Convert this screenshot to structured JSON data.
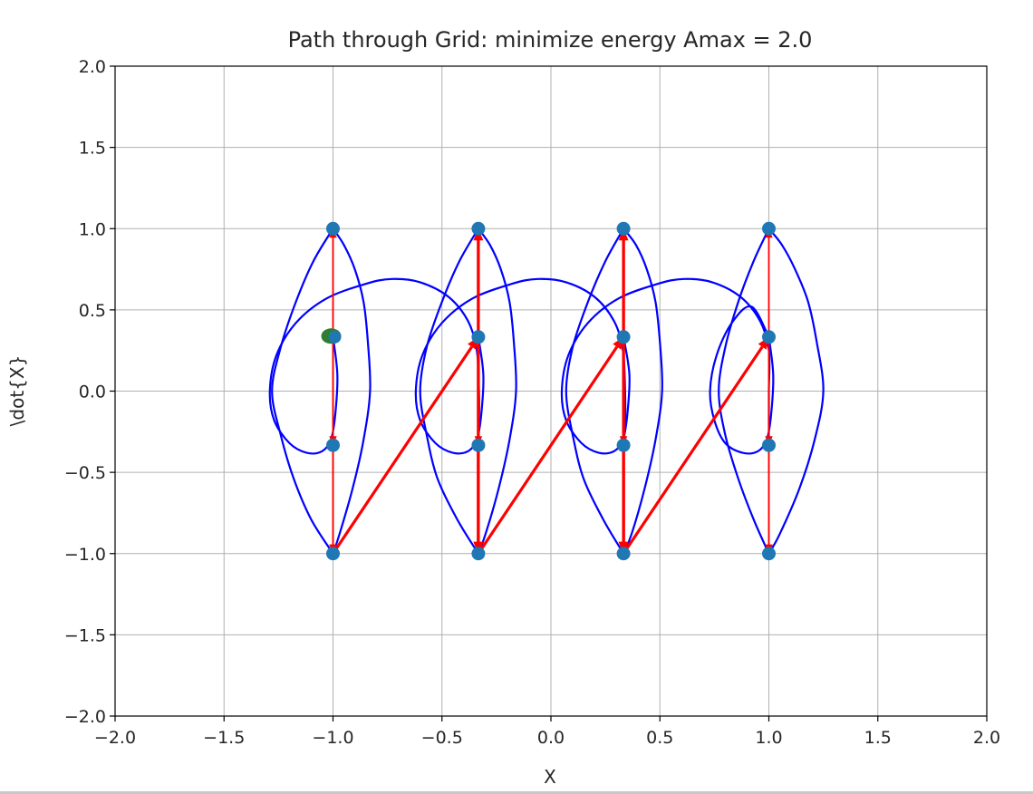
{
  "chart_data": {
    "type": "scatter",
    "title": "Path through Grid: minimize energy  Amax = 2.0",
    "xlabel": "X",
    "ylabel": "\\dot{X}",
    "xlim": [
      -2.0,
      2.0
    ],
    "ylim": [
      -2.0,
      2.0
    ],
    "xticks": [
      -2.0,
      -1.5,
      -1.0,
      -0.5,
      0.0,
      0.5,
      1.0,
      1.5,
      2.0
    ],
    "yticks": [
      -2.0,
      -1.5,
      -1.0,
      -0.5,
      0.0,
      0.5,
      1.0,
      1.5,
      2.0
    ],
    "xtick_labels": [
      "−2.0",
      "−1.5",
      "−1.0",
      "−0.5",
      "0.0",
      "0.5",
      "1.0",
      "1.5",
      "2.0"
    ],
    "ytick_labels": [
      "−2.0",
      "−1.5",
      "−1.0",
      "−0.5",
      "0.0",
      "0.5",
      "1.0",
      "1.5",
      "2.0"
    ],
    "grid": true,
    "colors": {
      "grid_nodes": "#1f77b4",
      "start_node": "#2e7d32",
      "curves": "#0000ff",
      "arrows": "#ff0000",
      "grid": "#b0b0b0",
      "axes": "#000000"
    },
    "grid_nodes": [
      {
        "x": -1.0,
        "y": 1.0
      },
      {
        "x": -1.0,
        "y": 0.333
      },
      {
        "x": -1.0,
        "y": -0.333
      },
      {
        "x": -1.0,
        "y": -1.0
      },
      {
        "x": -0.333,
        "y": 1.0
      },
      {
        "x": -0.333,
        "y": 0.333
      },
      {
        "x": -0.333,
        "y": -0.333
      },
      {
        "x": -0.333,
        "y": -1.0
      },
      {
        "x": 0.333,
        "y": 1.0
      },
      {
        "x": 0.333,
        "y": 0.333
      },
      {
        "x": 0.333,
        "y": -0.333
      },
      {
        "x": 0.333,
        "y": -1.0
      },
      {
        "x": 1.0,
        "y": 1.0
      },
      {
        "x": 1.0,
        "y": 0.333
      },
      {
        "x": 1.0,
        "y": -0.333
      },
      {
        "x": 1.0,
        "y": -1.0
      }
    ],
    "start_node": {
      "x": -1.0,
      "y": 0.333
    },
    "arrows": [
      {
        "from": [
          -1.0,
          0.333
        ],
        "to": [
          -1.0,
          -0.333
        ],
        "width": "thin"
      },
      {
        "from": [
          -1.0,
          -0.333
        ],
        "to": [
          -1.0,
          -1.0
        ],
        "width": "thin"
      },
      {
        "from": [
          -1.0,
          -1.0
        ],
        "to": [
          -1.0,
          1.0
        ],
        "width": "thin"
      },
      {
        "from": [
          -1.0,
          1.0
        ],
        "to": [
          -1.0,
          -1.0
        ],
        "width": "thin"
      },
      {
        "from": [
          -1.0,
          -1.0
        ],
        "to": [
          -0.333,
          0.333
        ],
        "width": "thick"
      },
      {
        "from": [
          -0.333,
          0.333
        ],
        "to": [
          -0.333,
          -0.333
        ],
        "width": "thin"
      },
      {
        "from": [
          -0.333,
          -0.333
        ],
        "to": [
          -0.333,
          -1.0
        ],
        "width": "thick"
      },
      {
        "from": [
          -0.333,
          -1.0
        ],
        "to": [
          -0.333,
          1.0
        ],
        "width": "thick"
      },
      {
        "from": [
          -0.333,
          1.0
        ],
        "to": [
          -0.333,
          -1.0
        ],
        "width": "thick"
      },
      {
        "from": [
          -0.333,
          -1.0
        ],
        "to": [
          0.333,
          0.333
        ],
        "width": "thick"
      },
      {
        "from": [
          0.333,
          0.333
        ],
        "to": [
          0.333,
          -0.333
        ],
        "width": "thin"
      },
      {
        "from": [
          0.333,
          -0.333
        ],
        "to": [
          0.333,
          -1.0
        ],
        "width": "thick"
      },
      {
        "from": [
          0.333,
          -1.0
        ],
        "to": [
          0.333,
          1.0
        ],
        "width": "thick"
      },
      {
        "from": [
          0.333,
          1.0
        ],
        "to": [
          0.333,
          -1.0
        ],
        "width": "thick"
      },
      {
        "from": [
          0.333,
          -1.0
        ],
        "to": [
          1.0,
          0.333
        ],
        "width": "thick"
      },
      {
        "from": [
          1.0,
          0.333
        ],
        "to": [
          1.0,
          -0.333
        ],
        "width": "thin"
      },
      {
        "from": [
          1.0,
          -0.333
        ],
        "to": [
          1.0,
          -1.0
        ],
        "width": "thin"
      },
      {
        "from": [
          1.0,
          -1.0
        ],
        "to": [
          1.0,
          1.0
        ],
        "width": "thin"
      },
      {
        "from": [
          1.0,
          1.0
        ],
        "to": [
          1.0,
          -1.0
        ],
        "width": "thin"
      }
    ],
    "curves": [
      {
        "points": [
          [
            -1.0,
            -1.0
          ],
          [
            -1.1,
            -0.79
          ],
          [
            -1.18,
            -0.54
          ],
          [
            -1.24,
            -0.27
          ],
          [
            -1.28,
            0.0
          ],
          [
            -1.24,
            0.27
          ],
          [
            -1.17,
            0.55
          ],
          [
            -1.09,
            0.8
          ],
          [
            -1.0,
            1.0
          ]
        ]
      },
      {
        "points": [
          [
            -1.0,
            1.0
          ],
          [
            -0.95,
            0.9
          ],
          [
            -0.9,
            0.75
          ],
          [
            -0.86,
            0.55
          ],
          [
            -0.84,
            0.3
          ],
          [
            -0.83,
            0.0
          ],
          [
            -0.86,
            -0.3
          ],
          [
            -0.91,
            -0.6
          ],
          [
            -0.97,
            -0.88
          ],
          [
            -1.0,
            -1.0
          ]
        ]
      },
      {
        "points": [
          [
            -1.0,
            0.333
          ],
          [
            -0.98,
            0.1
          ],
          [
            -0.99,
            -0.15
          ],
          [
            -1.01,
            -0.3
          ],
          [
            -1.05,
            -0.37
          ],
          [
            -1.12,
            -0.38
          ],
          [
            -1.2,
            -0.32
          ],
          [
            -1.27,
            -0.18
          ],
          [
            -1.29,
            0.0
          ],
          [
            -1.26,
            0.22
          ],
          [
            -1.17,
            0.42
          ],
          [
            -1.03,
            0.57
          ],
          [
            -0.85,
            0.66
          ],
          [
            -0.73,
            0.69
          ],
          [
            -0.6,
            0.67
          ],
          [
            -0.47,
            0.58
          ],
          [
            -0.38,
            0.43
          ],
          [
            -0.34,
            0.25
          ],
          [
            -0.33,
            0.0
          ],
          [
            -0.33,
            -0.2
          ],
          [
            -0.333,
            -0.333
          ]
        ]
      },
      {
        "points": [
          [
            -0.333,
            -1.0
          ],
          [
            -0.43,
            -0.79
          ],
          [
            -0.52,
            -0.54
          ],
          [
            -0.57,
            -0.27
          ],
          [
            -0.6,
            0.0
          ],
          [
            -0.57,
            0.27
          ],
          [
            -0.5,
            0.55
          ],
          [
            -0.42,
            0.8
          ],
          [
            -0.333,
            1.0
          ]
        ]
      },
      {
        "points": [
          [
            -0.333,
            1.0
          ],
          [
            -0.28,
            0.9
          ],
          [
            -0.23,
            0.75
          ],
          [
            -0.19,
            0.55
          ],
          [
            -0.17,
            0.3
          ],
          [
            -0.16,
            0.0
          ],
          [
            -0.19,
            -0.3
          ],
          [
            -0.24,
            -0.6
          ],
          [
            -0.3,
            -0.88
          ],
          [
            -0.333,
            -1.0
          ]
        ]
      },
      {
        "points": [
          [
            -0.333,
            0.333
          ],
          [
            -0.31,
            0.1
          ],
          [
            -0.32,
            -0.15
          ],
          [
            -0.34,
            -0.3
          ],
          [
            -0.38,
            -0.37
          ],
          [
            -0.45,
            -0.38
          ],
          [
            -0.53,
            -0.32
          ],
          [
            -0.6,
            -0.18
          ],
          [
            -0.62,
            0.0
          ],
          [
            -0.59,
            0.22
          ],
          [
            -0.5,
            0.42
          ],
          [
            -0.36,
            0.57
          ],
          [
            -0.18,
            0.66
          ],
          [
            -0.06,
            0.69
          ],
          [
            0.07,
            0.67
          ],
          [
            0.2,
            0.58
          ],
          [
            0.29,
            0.43
          ],
          [
            0.33,
            0.25
          ],
          [
            0.34,
            0.0
          ],
          [
            0.34,
            -0.2
          ],
          [
            0.333,
            -0.333
          ]
        ]
      },
      {
        "points": [
          [
            0.333,
            -1.0
          ],
          [
            0.24,
            -0.79
          ],
          [
            0.15,
            -0.54
          ],
          [
            0.1,
            -0.27
          ],
          [
            0.07,
            0.0
          ],
          [
            0.1,
            0.27
          ],
          [
            0.17,
            0.55
          ],
          [
            0.25,
            0.8
          ],
          [
            0.333,
            1.0
          ]
        ]
      },
      {
        "points": [
          [
            0.333,
            1.0
          ],
          [
            0.39,
            0.9
          ],
          [
            0.44,
            0.75
          ],
          [
            0.48,
            0.55
          ],
          [
            0.5,
            0.3
          ],
          [
            0.51,
            0.0
          ],
          [
            0.48,
            -0.3
          ],
          [
            0.43,
            -0.6
          ],
          [
            0.37,
            -0.88
          ],
          [
            0.333,
            -1.0
          ]
        ]
      },
      {
        "points": [
          [
            0.333,
            0.333
          ],
          [
            0.36,
            0.1
          ],
          [
            0.35,
            -0.15
          ],
          [
            0.33,
            -0.3
          ],
          [
            0.29,
            -0.37
          ],
          [
            0.22,
            -0.38
          ],
          [
            0.14,
            -0.32
          ],
          [
            0.07,
            -0.18
          ],
          [
            0.05,
            0.0
          ],
          [
            0.08,
            0.22
          ],
          [
            0.17,
            0.42
          ],
          [
            0.31,
            0.57
          ],
          [
            0.49,
            0.66
          ],
          [
            0.61,
            0.69
          ],
          [
            0.74,
            0.67
          ],
          [
            0.87,
            0.58
          ],
          [
            0.96,
            0.43
          ],
          [
            1.0,
            0.25
          ],
          [
            1.0,
            0.0
          ],
          [
            1.0,
            -0.2
          ],
          [
            1.0,
            -0.333
          ]
        ]
      },
      {
        "points": [
          [
            1.0,
            -1.0
          ],
          [
            0.93,
            -0.79
          ],
          [
            0.86,
            -0.54
          ],
          [
            0.8,
            -0.27
          ],
          [
            0.77,
            0.0
          ],
          [
            0.8,
            0.27
          ],
          [
            0.86,
            0.55
          ],
          [
            0.93,
            0.8
          ],
          [
            1.0,
            1.0
          ]
        ]
      },
      {
        "points": [
          [
            1.0,
            1.0
          ],
          [
            1.06,
            0.9
          ],
          [
            1.12,
            0.75
          ],
          [
            1.18,
            0.55
          ],
          [
            1.22,
            0.3
          ],
          [
            1.25,
            0.0
          ],
          [
            1.21,
            -0.3
          ],
          [
            1.14,
            -0.6
          ],
          [
            1.05,
            -0.88
          ],
          [
            1.0,
            -1.0
          ]
        ]
      },
      {
        "points": [
          [
            1.0,
            0.333
          ],
          [
            1.02,
            0.1
          ],
          [
            1.01,
            -0.15
          ],
          [
            0.99,
            -0.3
          ],
          [
            0.95,
            -0.37
          ],
          [
            0.88,
            -0.38
          ],
          [
            0.8,
            -0.32
          ],
          [
            0.75,
            -0.18
          ],
          [
            0.73,
            0.0
          ],
          [
            0.76,
            0.22
          ],
          [
            0.83,
            0.42
          ],
          [
            0.92,
            0.52
          ],
          [
            1.0,
            0.333
          ]
        ]
      }
    ]
  }
}
